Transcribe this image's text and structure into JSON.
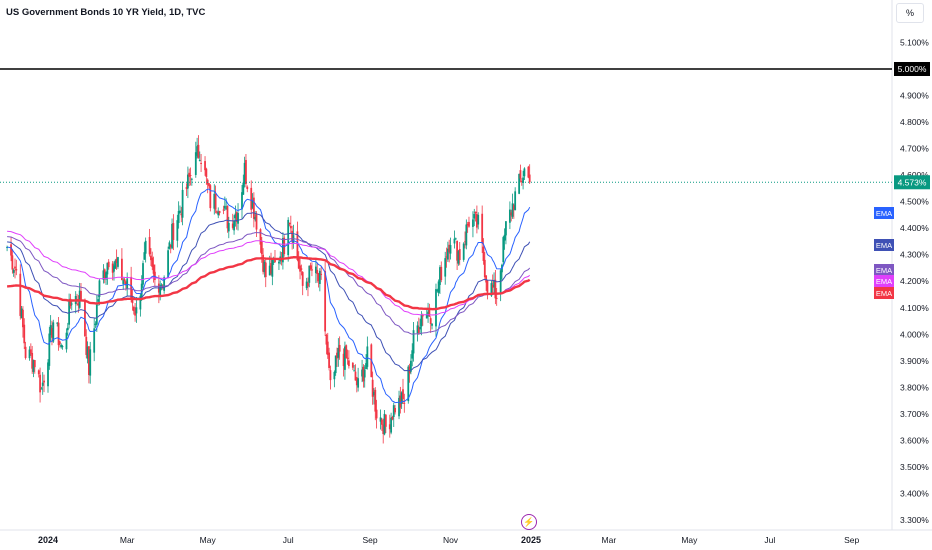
{
  "header": {
    "title": "US Government Bonds 10 YR Yield, 1D, TVC"
  },
  "toolbar": {
    "unit_label": "%"
  },
  "icons": {
    "events": "lightning-icon"
  },
  "chart_data": {
    "type": "candlestick",
    "title": "US Government Bonds 10 YR Yield, 1D, TVC",
    "ylim": [
      3.28,
      5.2
    ],
    "y_ticks": [
      "5.100%",
      "4.900%",
      "4.800%",
      "4.700%",
      "4.600%",
      "4.500%",
      "4.400%",
      "4.300%",
      "4.200%",
      "4.100%",
      "4.000%",
      "3.900%",
      "3.800%",
      "3.700%",
      "3.600%",
      "3.500%",
      "3.400%",
      "3.300%"
    ],
    "x_ticks": [
      "2024",
      "Mar",
      "May",
      "Jul",
      "Sep",
      "Nov",
      "2025",
      "Mar",
      "May",
      "Jul",
      "Sep"
    ],
    "x_tick_dates": [
      "2024-01-01",
      "2024-03-01",
      "2024-05-01",
      "2024-07-01",
      "2024-09-01",
      "2024-11-01",
      "2025-01-01",
      "2025-03-01",
      "2025-05-01",
      "2025-07-01",
      "2025-09-01"
    ],
    "horizontal_line": {
      "value": 5.0,
      "label": "5.000%",
      "color": "#000000"
    },
    "last_price": {
      "value": 4.573,
      "label": "4.573%",
      "color": "#089981"
    },
    "colors": {
      "up": "#089981",
      "down": "#f23645"
    },
    "close_path": [
      [
        "2023-12-01",
        4.33
      ],
      [
        "2023-12-08",
        4.24
      ],
      [
        "2023-12-15",
        3.93
      ],
      [
        "2023-12-22",
        3.9
      ],
      [
        "2023-12-27",
        3.79
      ],
      [
        "2024-01-05",
        4.05
      ],
      [
        "2024-01-12",
        3.94
      ],
      [
        "2024-01-19",
        4.14
      ],
      [
        "2024-01-26",
        4.14
      ],
      [
        "2024-02-01",
        3.87
      ],
      [
        "2024-02-09",
        4.18
      ],
      [
        "2024-02-16",
        4.29
      ],
      [
        "2024-02-23",
        4.25
      ],
      [
        "2024-03-01",
        4.18
      ],
      [
        "2024-03-08",
        4.08
      ],
      [
        "2024-03-15",
        4.31
      ],
      [
        "2024-03-22",
        4.2
      ],
      [
        "2024-03-28",
        4.2
      ],
      [
        "2024-04-05",
        4.4
      ],
      [
        "2024-04-12",
        4.5
      ],
      [
        "2024-04-19",
        4.62
      ],
      [
        "2024-04-25",
        4.7
      ],
      [
        "2024-05-03",
        4.5
      ],
      [
        "2024-05-10",
        4.5
      ],
      [
        "2024-05-17",
        4.42
      ],
      [
        "2024-05-24",
        4.47
      ],
      [
        "2024-05-29",
        4.62
      ],
      [
        "2024-06-07",
        4.43
      ],
      [
        "2024-06-14",
        4.22
      ],
      [
        "2024-06-21",
        4.26
      ],
      [
        "2024-06-28",
        4.34
      ],
      [
        "2024-07-01",
        4.47
      ],
      [
        "2024-07-12",
        4.18
      ],
      [
        "2024-07-19",
        4.24
      ],
      [
        "2024-07-26",
        4.19
      ],
      [
        "2024-08-02",
        3.79
      ],
      [
        "2024-08-09",
        3.94
      ],
      [
        "2024-08-16",
        3.89
      ],
      [
        "2024-08-23",
        3.8
      ],
      [
        "2024-08-30",
        3.91
      ],
      [
        "2024-09-06",
        3.71
      ],
      [
        "2024-09-13",
        3.65
      ],
      [
        "2024-09-20",
        3.73
      ],
      [
        "2024-09-27",
        3.75
      ],
      [
        "2024-10-04",
        3.98
      ],
      [
        "2024-10-11",
        4.09
      ],
      [
        "2024-10-18",
        4.08
      ],
      [
        "2024-10-25",
        4.24
      ],
      [
        "2024-11-01",
        4.37
      ],
      [
        "2024-11-08",
        4.3
      ],
      [
        "2024-11-15",
        4.43
      ],
      [
        "2024-11-22",
        4.41
      ],
      [
        "2024-11-29",
        4.19
      ],
      [
        "2024-12-06",
        4.15
      ],
      [
        "2024-12-13",
        4.4
      ],
      [
        "2024-12-20",
        4.52
      ],
      [
        "2024-12-27",
        4.62
      ],
      [
        "2024-12-31",
        4.573
      ]
    ],
    "series": [
      {
        "name": "EMA",
        "color": "#2962ff",
        "last": 4.45
      },
      {
        "name": "EMA",
        "color": "#3f51b5",
        "last": 4.33
      },
      {
        "name": "EMA",
        "color": "#7e57c2",
        "last": 4.23
      },
      {
        "name": "EMA",
        "color": "#e040fb",
        "last": 4.21
      },
      {
        "name": "EMA",
        "color": "#f23645",
        "last": 4.19
      }
    ]
  }
}
